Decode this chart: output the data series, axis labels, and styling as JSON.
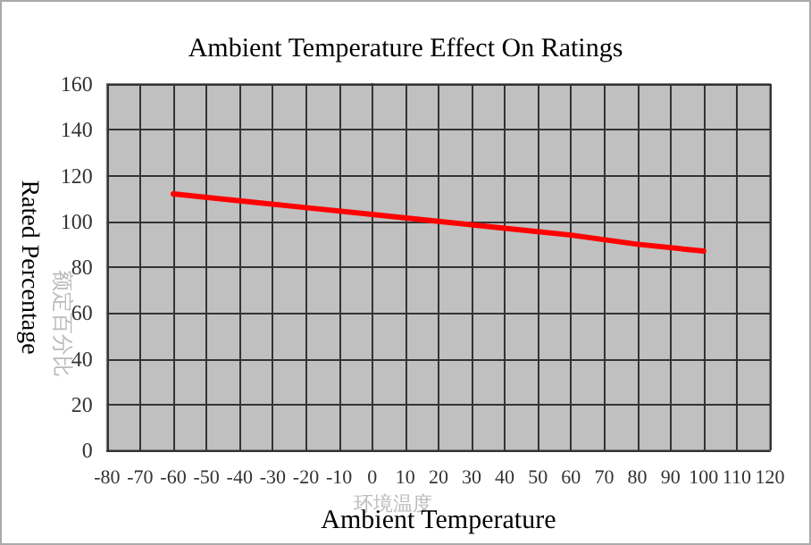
{
  "chart_data": {
    "type": "line",
    "title": "Ambient Temperature Effect On Ratings",
    "xlabel": "Ambient Temperature",
    "ylabel": "Rated Percentage",
    "annotations": [
      "额定百分比",
      "环境温度"
    ],
    "x": [
      -60,
      -40,
      -20,
      0,
      20,
      40,
      60,
      80,
      100
    ],
    "series": [
      {
        "color": "#ff0000",
        "values": [
          112,
          109,
          106,
          103,
          100,
          97,
          94,
          90,
          87
        ]
      }
    ],
    "xlim": [
      -80,
      120
    ],
    "xticks": [
      -80,
      -70,
      -60,
      -50,
      -40,
      -30,
      -20,
      -10,
      0,
      10,
      20,
      30,
      40,
      50,
      60,
      70,
      80,
      90,
      100,
      110,
      120
    ],
    "ylim": [
      0,
      160
    ],
    "yticks": [
      0,
      20,
      40,
      60,
      80,
      100,
      120,
      140,
      160
    ],
    "grid": true,
    "marker": "none",
    "line_style": "solid"
  }
}
